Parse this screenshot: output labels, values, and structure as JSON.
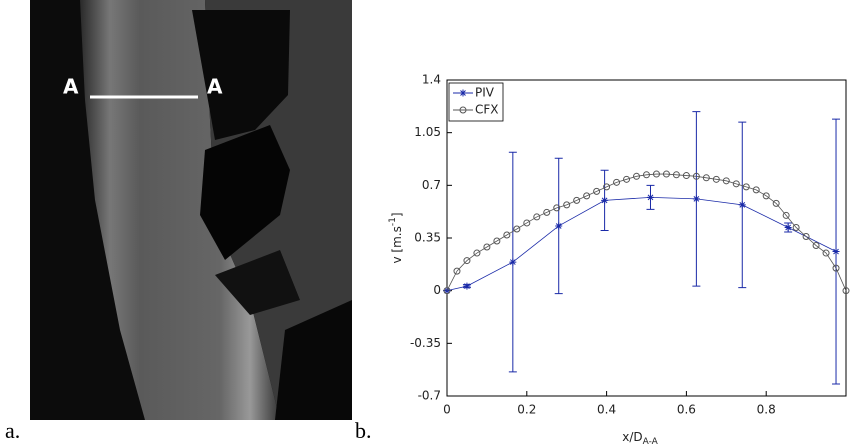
{
  "panels": {
    "a": {
      "label": "a.",
      "section_left": "A",
      "section_right": "A"
    },
    "b": {
      "label": "b."
    }
  },
  "chart_data": {
    "type": "line",
    "xlabel": {
      "base": "x/D",
      "sub": "A-A"
    },
    "ylabel": {
      "base": "v [m.s",
      "sup": "-1",
      "end": "]"
    },
    "xlim": [
      0,
      1
    ],
    "ylim": [
      -0.7,
      1.4
    ],
    "xticks": [
      0,
      0.2,
      0.4,
      0.6,
      0.8
    ],
    "yticks": [
      -0.7,
      -0.35,
      0,
      0.35,
      0.7,
      1.05,
      1.4
    ],
    "legend": "upper left",
    "series": [
      {
        "name": "PIV",
        "color": "#1a2aa8",
        "marker": "star",
        "x": [
          0,
          0.05,
          0.165,
          0.28,
          0.395,
          0.51,
          0.625,
          0.74,
          0.855,
          0.975
        ],
        "values": [
          0,
          0.03,
          0.19,
          0.43,
          0.6,
          0.62,
          0.61,
          0.57,
          0.42,
          0.26
        ],
        "errors": [
          0,
          0.01,
          0.73,
          0.45,
          0.2,
          0.08,
          0.58,
          0.55,
          0.03,
          0.88
        ]
      },
      {
        "name": "CFX",
        "color": "#555555",
        "marker": "circle",
        "x": [
          0,
          0.025,
          0.05,
          0.075,
          0.1,
          0.125,
          0.15,
          0.175,
          0.2,
          0.225,
          0.25,
          0.275,
          0.3,
          0.325,
          0.35,
          0.375,
          0.4,
          0.425,
          0.45,
          0.475,
          0.5,
          0.525,
          0.55,
          0.575,
          0.6,
          0.625,
          0.65,
          0.675,
          0.7,
          0.725,
          0.75,
          0.775,
          0.8,
          0.825,
          0.85,
          0.875,
          0.9,
          0.925,
          0.95,
          0.975,
          1
        ],
        "values": [
          0,
          0.13,
          0.2,
          0.25,
          0.29,
          0.33,
          0.37,
          0.41,
          0.45,
          0.49,
          0.52,
          0.55,
          0.57,
          0.6,
          0.63,
          0.66,
          0.69,
          0.72,
          0.74,
          0.76,
          0.77,
          0.775,
          0.775,
          0.77,
          0.765,
          0.76,
          0.75,
          0.74,
          0.73,
          0.71,
          0.69,
          0.67,
          0.63,
          0.58,
          0.5,
          0.42,
          0.36,
          0.3,
          0.25,
          0.15,
          0
        ]
      }
    ]
  }
}
